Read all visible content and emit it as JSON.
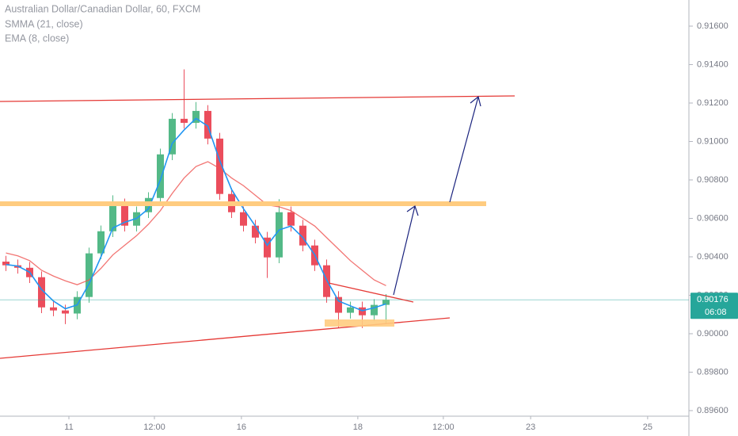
{
  "chart_data": {
    "type": "candlestick",
    "title": "Australian Dollar/Canadian Dollar, 60, FXCM",
    "x": [
      2,
      6,
      10,
      14,
      18,
      22,
      26,
      30,
      34,
      38,
      42,
      46,
      50,
      54,
      58,
      62,
      66,
      70,
      74,
      78,
      82,
      86,
      90,
      94,
      98,
      102,
      106,
      110,
      114,
      118,
      122,
      126,
      130
    ],
    "open": [
      0.90375,
      0.90356,
      0.90343,
      0.90294,
      0.90137,
      0.90121,
      0.90105,
      0.90191,
      0.90418,
      0.90533,
      0.90673,
      0.90562,
      0.90632,
      0.90706,
      0.90933,
      0.91118,
      0.91097,
      0.91159,
      0.91015,
      0.90727,
      0.90632,
      0.90562,
      0.905,
      0.90397,
      0.90632,
      0.90562,
      0.90459,
      0.90356,
      0.90191,
      0.90109,
      0.90137,
      0.90096,
      0.9015
    ],
    "high": [
      0.90405,
      0.90386,
      0.90373,
      0.90324,
      0.90167,
      0.90151,
      0.90221,
      0.90448,
      0.90563,
      0.9072,
      0.90703,
      0.90662,
      0.90736,
      0.90963,
      0.91148,
      0.91375,
      0.91205,
      0.91189,
      0.91045,
      0.90757,
      0.90662,
      0.90592,
      0.9053,
      0.907,
      0.90662,
      0.90592,
      0.90489,
      0.90386,
      0.90221,
      0.90167,
      0.90167,
      0.9018,
      0.90206
    ],
    "low": [
      0.90326,
      0.90313,
      0.90264,
      0.90107,
      0.90091,
      0.9005,
      0.90075,
      0.90161,
      0.90388,
      0.90503,
      0.90532,
      0.90532,
      0.90602,
      0.90676,
      0.90903,
      0.91067,
      0.91067,
      0.90985,
      0.90697,
      0.90602,
      0.90532,
      0.9047,
      0.9029,
      0.90367,
      0.90532,
      0.90429,
      0.90326,
      0.90161,
      0.9003,
      0.90079,
      0.9003,
      0.90066,
      0.9005
    ],
    "close": [
      0.90356,
      0.90343,
      0.90294,
      0.90137,
      0.90121,
      0.90105,
      0.90191,
      0.90418,
      0.90533,
      0.90673,
      0.90562,
      0.90632,
      0.90706,
      0.90933,
      0.91118,
      0.91097,
      0.91159,
      0.91015,
      0.90727,
      0.90632,
      0.90562,
      0.905,
      0.90397,
      0.90632,
      0.90562,
      0.90459,
      0.90356,
      0.90191,
      0.90109,
      0.90137,
      0.90096,
      0.9015,
      0.90176
    ],
    "up_color": "#53b987",
    "down_color": "#eb4d5c",
    "series": [
      {
        "name": "SMMA (21, close)",
        "color": "#ef5350",
        "values": [
          0.9042,
          0.90405,
          0.9038,
          0.9033,
          0.903,
          0.90275,
          0.90255,
          0.9028,
          0.9034,
          0.9041,
          0.9046,
          0.9051,
          0.9057,
          0.9064,
          0.9073,
          0.9081,
          0.9087,
          0.90895,
          0.9086,
          0.9081,
          0.9077,
          0.9072,
          0.9067,
          0.9066,
          0.9064,
          0.906,
          0.9056,
          0.905,
          0.9044,
          0.9038,
          0.9033,
          0.9028,
          0.9025
        ]
      },
      {
        "name": "EMA (8, close)",
        "color": "#2196f3",
        "values": [
          0.9036,
          0.90352,
          0.9032,
          0.9023,
          0.9017,
          0.9013,
          0.9015,
          0.9026,
          0.904,
          0.9055,
          0.9058,
          0.906,
          0.9065,
          0.908,
          0.9099,
          0.9106,
          0.9112,
          0.9108,
          0.909,
          0.9075,
          0.9065,
          0.9056,
          0.9046,
          0.9054,
          0.9056,
          0.905,
          0.9041,
          0.9028,
          0.9017,
          0.90145,
          0.9012,
          0.90135,
          0.90155
        ]
      }
    ],
    "xlim": [
      0,
      232
    ],
    "xticks": [
      {
        "value": 23.2,
        "label": "11"
      },
      {
        "value": 52,
        "label": "12:00"
      },
      {
        "value": 81.3,
        "label": "16"
      },
      {
        "value": 120.5,
        "label": "18"
      },
      {
        "value": 149.3,
        "label": "12:00"
      },
      {
        "value": 178.7,
        "label": "23"
      },
      {
        "value": 218.1,
        "label": "25"
      }
    ],
    "ylim": [
      0.89571,
      0.91736
    ],
    "yticks": [
      {
        "value": 0.896,
        "label": "0.89600"
      },
      {
        "value": 0.898,
        "label": "0.89800"
      },
      {
        "value": 0.9,
        "label": "0.90000"
      },
      {
        "value": 0.902,
        "label": "0.90200"
      },
      {
        "value": 0.904,
        "label": "0.90400"
      },
      {
        "value": 0.906,
        "label": "0.90600"
      },
      {
        "value": 0.908,
        "label": "0.90800"
      },
      {
        "value": 0.91,
        "label": "0.91000"
      },
      {
        "value": 0.912,
        "label": "0.91200"
      },
      {
        "value": 0.914,
        "label": "0.91400"
      },
      {
        "value": 0.916,
        "label": "0.91600"
      }
    ],
    "last_price": 0.90176,
    "countdown": "06:08",
    "price_color": "#26a69a"
  }
}
